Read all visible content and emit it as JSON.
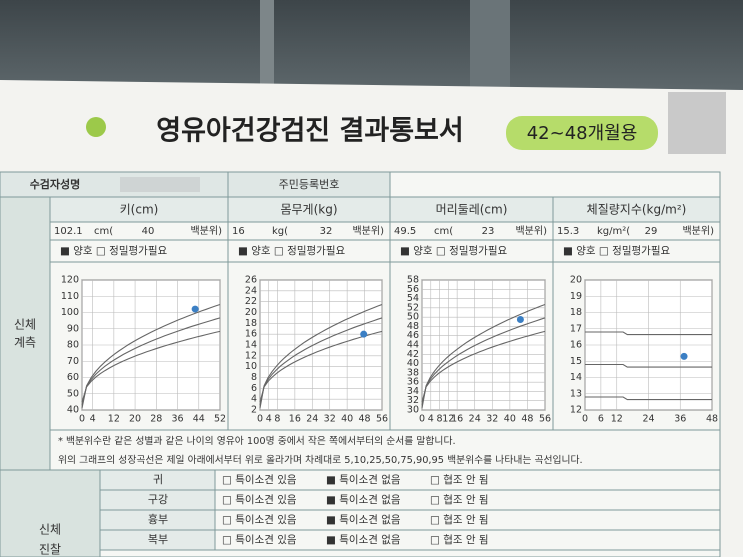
{
  "header": {
    "title": "영유아건강검진 결과통보서",
    "badge": "42~48개월용"
  },
  "info": {
    "name_label": "수검자성명",
    "id_label": "주민등록번호"
  },
  "measurements": {
    "section_label": [
      "신체",
      "계측"
    ],
    "columns": [
      {
        "title": "키(cm)",
        "value": 102.1,
        "unit": "cm(",
        "percentile": 40,
        "percentile_label": "백분위)",
        "status": "■ 양호 □ 정밀평가필요",
        "yticks": [
          40,
          50,
          60,
          70,
          80,
          90,
          100,
          110,
          120
        ],
        "xticks": [
          0,
          4,
          12,
          20,
          28,
          36,
          44,
          52
        ]
      },
      {
        "title": "몸무게(kg)",
        "value": 16,
        "unit": "kg(",
        "percentile": 32,
        "percentile_label": "백분위)",
        "status": "■ 양호 □ 정밀평가필요",
        "yticks": [
          2,
          4,
          6,
          8,
          10,
          12,
          14,
          16,
          18,
          20,
          22,
          24,
          26
        ],
        "xticks": [
          0,
          4,
          8,
          16,
          24,
          32,
          40,
          48,
          56
        ]
      },
      {
        "title": "머리둘레(cm)",
        "value": 49.5,
        "unit": "cm(",
        "percentile": 23,
        "percentile_label": "백분위)",
        "status": "■ 양호 □ 정밀평가필요",
        "yticks": [
          30,
          32,
          34,
          36,
          38,
          40,
          42,
          44,
          46,
          48,
          50,
          52,
          54,
          56,
          58
        ],
        "xticks": [
          0,
          4,
          8,
          12,
          16,
          24,
          32,
          40,
          48,
          56
        ]
      },
      {
        "title": "체질량지수(kg/m²)",
        "value": 15.3,
        "unit": "kg/m²(",
        "percentile": 29,
        "percentile_label": "백분위)",
        "status": "■ 양호 □ 정밀평가필요",
        "yticks": [
          12,
          13,
          14,
          15,
          16,
          17,
          18,
          19,
          20
        ],
        "xticks": [
          0,
          6,
          12,
          24,
          36,
          48
        ]
      }
    ]
  },
  "notes": [
    "* 백분위수란 같은 성별과 같은 나이의 영유아 100명 중에서 작은 쪽에서부터의 순서를 말합니다.",
    "위의 그래프의 성장곡선은 제일 아래에서부터 위로 올라가며 차례대로 5,10,25,50,75,90,95 백분위수를 나타내는 곡선입니다."
  ],
  "exam": {
    "section_label": [
      "신체",
      "진찰"
    ],
    "rows": [
      {
        "label": "귀",
        "options": [
          "□ 특이소견 있음",
          "■ 특이소견 없음",
          "□ 협조 안 됨"
        ]
      },
      {
        "label": "구강",
        "options": [
          "□ 특이소견 있음",
          "■ 특이소견 없음",
          "□ 협조 안 됨"
        ]
      },
      {
        "label": "흉부",
        "options": [
          "□ 특이소견 있음",
          "■ 특이소견 없음",
          "□ 협조 안 됨"
        ]
      },
      {
        "label": "복부",
        "options": [
          "□ 특이소견 있음",
          "■ 특이소견 없음",
          "□ 협조 안 됨"
        ]
      }
    ]
  }
}
